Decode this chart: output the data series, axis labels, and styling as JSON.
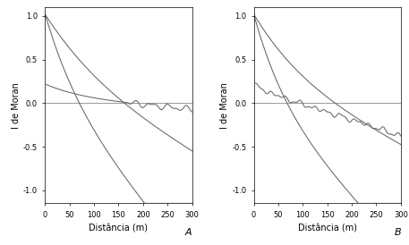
{
  "xlim": [
    0,
    300
  ],
  "ylim": [
    -1.15,
    1.1
  ],
  "yticks": [
    -1.0,
    -0.5,
    0.0,
    0.5,
    1.0
  ],
  "xticks": [
    0,
    50,
    100,
    150,
    200,
    250,
    300
  ],
  "xlabel": "Distância (m)",
  "ylabel": "I de Moran",
  "label_A": "A",
  "label_B": "B",
  "line_color": "#666666",
  "ref_line_color": "#999999",
  "bg_color": "#ffffff"
}
